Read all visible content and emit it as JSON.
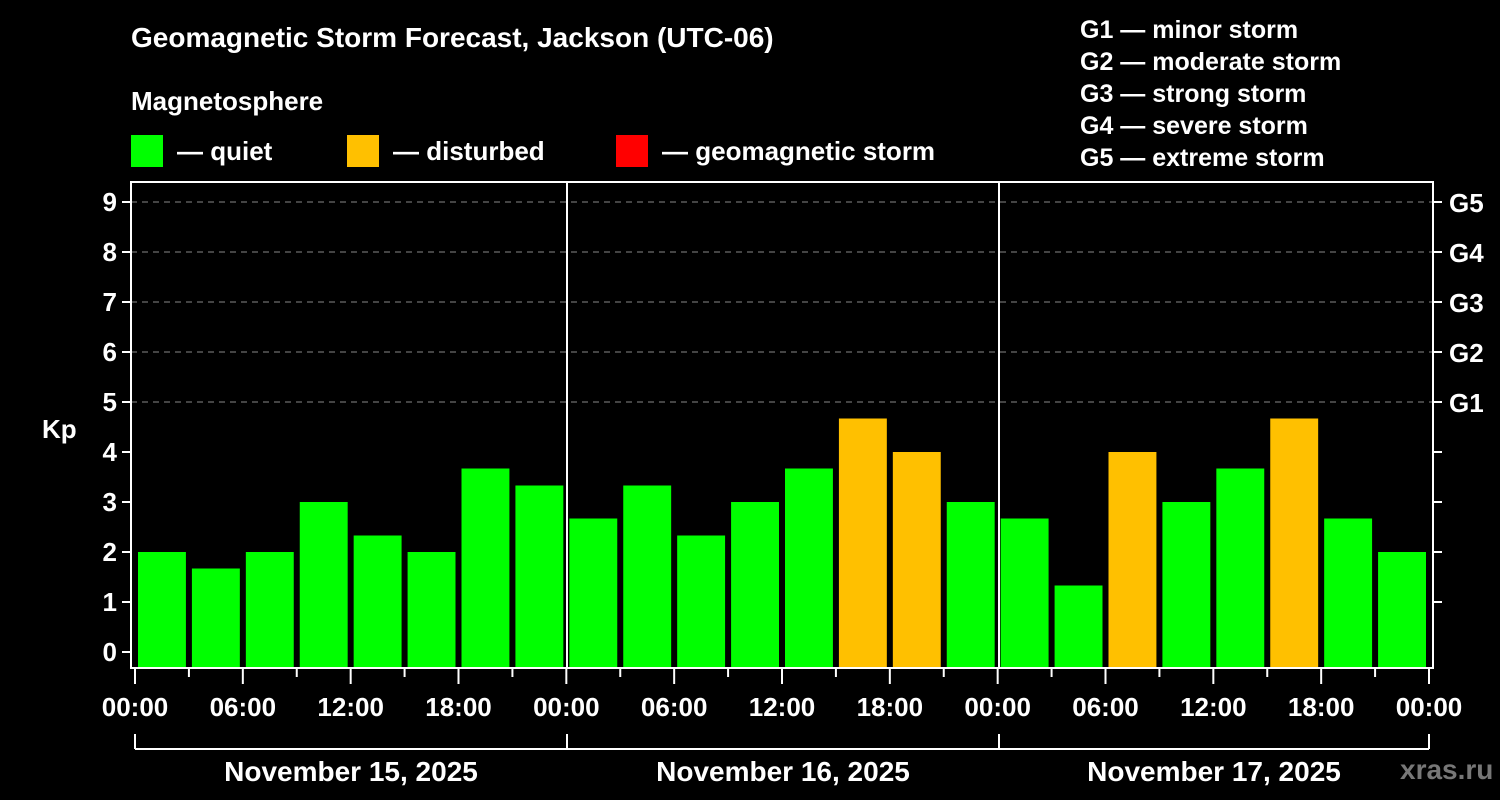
{
  "header": {
    "title": "Geomagnetic Storm Forecast, Jackson (UTC-06)",
    "subtitle": "Magnetosphere"
  },
  "legend": [
    {
      "label": "— quiet",
      "color": "#00ff00"
    },
    {
      "label": "— disturbed",
      "color": "#ffc000"
    },
    {
      "label": "— geomagnetic storm",
      "color": "#ff0000"
    }
  ],
  "g_scale": [
    "G1 — minor storm",
    "G2 — moderate storm",
    "G3 — strong storm",
    "G4 — severe storm",
    "G5 — extreme storm"
  ],
  "axis": {
    "ylabel": "Kp",
    "y_ticks": [
      "0",
      "1",
      "2",
      "3",
      "4",
      "5",
      "6",
      "7",
      "8",
      "9"
    ],
    "right_ticks": [
      {
        "kp": 5,
        "label": "G1"
      },
      {
        "kp": 6,
        "label": "G2"
      },
      {
        "kp": 7,
        "label": "G3"
      },
      {
        "kp": 8,
        "label": "G4"
      },
      {
        "kp": 9,
        "label": "G5"
      }
    ],
    "x_ticks": [
      "00:00",
      "06:00",
      "12:00",
      "18:00",
      "00:00",
      "06:00",
      "12:00",
      "18:00",
      "00:00",
      "06:00",
      "12:00",
      "18:00",
      "00:00"
    ],
    "days": [
      "November 15, 2025",
      "November 16, 2025",
      "November 17, 2025"
    ]
  },
  "watermark": "xras.ru",
  "colors": {
    "quiet": "#00ff00",
    "disturbed": "#ffc000",
    "storm": "#ff0000",
    "grid": "#888888"
  },
  "chart_data": {
    "type": "bar",
    "title": "Geomagnetic Storm Forecast, Jackson (UTC-06)",
    "xlabel": "",
    "ylabel": "Kp",
    "ylim": [
      0,
      9
    ],
    "grid": "dashed horizontal lines at Kp 5-9",
    "right_axis": [
      "G1",
      "G2",
      "G3",
      "G4",
      "G5"
    ],
    "interval_hours": 3,
    "categories": [
      "Nov 15 00:00",
      "Nov 15 03:00",
      "Nov 15 06:00",
      "Nov 15 09:00",
      "Nov 15 12:00",
      "Nov 15 15:00",
      "Nov 15 18:00",
      "Nov 15 21:00",
      "Nov 16 00:00",
      "Nov 16 03:00",
      "Nov 16 06:00",
      "Nov 16 09:00",
      "Nov 16 12:00",
      "Nov 16 15:00",
      "Nov 16 18:00",
      "Nov 16 21:00",
      "Nov 17 00:00",
      "Nov 17 03:00",
      "Nov 17 06:00",
      "Nov 17 09:00",
      "Nov 17 12:00",
      "Nov 17 15:00",
      "Nov 17 18:00",
      "Nov 17 21:00"
    ],
    "values": [
      2.0,
      1.67,
      2.0,
      3.0,
      2.33,
      2.0,
      3.67,
      3.33,
      2.67,
      3.33,
      2.33,
      3.0,
      3.67,
      4.67,
      4.0,
      3.0,
      2.67,
      1.33,
      4.0,
      3.0,
      3.67,
      4.67,
      2.67,
      2.0
    ],
    "status": [
      "quiet",
      "quiet",
      "quiet",
      "quiet",
      "quiet",
      "quiet",
      "quiet",
      "quiet",
      "quiet",
      "quiet",
      "quiet",
      "quiet",
      "quiet",
      "disturbed",
      "disturbed",
      "quiet",
      "quiet",
      "quiet",
      "disturbed",
      "quiet",
      "quiet",
      "disturbed",
      "quiet",
      "quiet"
    ],
    "legend": [
      "quiet",
      "disturbed",
      "geomagnetic storm"
    ]
  }
}
